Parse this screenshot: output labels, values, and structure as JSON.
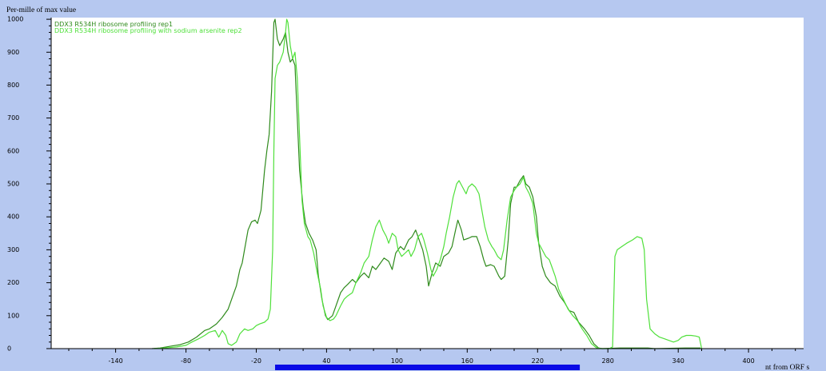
{
  "page": {
    "background": "#b6c8f0"
  },
  "chart_data": {
    "type": "line",
    "ylabel": "Per-mille of max value",
    "xlabel": "nt from ORF s",
    "xlim": [
      -195,
      447
    ],
    "ylim": [
      0,
      1005
    ],
    "x_ticks": [
      -140,
      -80,
      -20,
      40,
      100,
      160,
      220,
      280,
      340,
      400
    ],
    "y_ticks": [
      0,
      100,
      200,
      300,
      400,
      500,
      600,
      700,
      800,
      900,
      1000
    ],
    "grid": false,
    "legend": "top-left",
    "plot_background": "#ffffff",
    "orf": {
      "start": -4,
      "end": 256,
      "color": "#0a0ae6"
    },
    "series": [
      {
        "name": "DDX3 R534H ribosome profiling rep1",
        "color": "#2f8a1c",
        "x": [
          -109,
          -102,
          -92,
          -85,
          -78,
          -71,
          -64,
          -60,
          -54,
          -49,
          -44,
          -41,
          -37,
          -34,
          -32,
          -30,
          -27,
          -24,
          -21,
          -19,
          -16,
          -13,
          -11,
          -9,
          -7,
          -5,
          -4,
          -2,
          0,
          3,
          5,
          7,
          9,
          11,
          13,
          15,
          17,
          20,
          22,
          25,
          28,
          31,
          33,
          36,
          39,
          41,
          45,
          48,
          52,
          55,
          58,
          62,
          65,
          69,
          72,
          76,
          79,
          82,
          86,
          89,
          93,
          96,
          99,
          103,
          106,
          110,
          113,
          116,
          119,
          122,
          125,
          127,
          130,
          133,
          137,
          140,
          144,
          147,
          150,
          152,
          155,
          157,
          161,
          164,
          168,
          171,
          174,
          176,
          180,
          183,
          187,
          189,
          192,
          195,
          197,
          200,
          202,
          205,
          208,
          210,
          213,
          216,
          219,
          221,
          224,
          227,
          231,
          235,
          239,
          243,
          247,
          251,
          255,
          260,
          264,
          268,
          272,
          275,
          290,
          314,
          320,
          346,
          359
        ],
        "y": [
          0,
          2,
          8,
          12,
          20,
          35,
          55,
          60,
          75,
          95,
          120,
          150,
          190,
          240,
          260,
          300,
          360,
          385,
          390,
          380,
          420,
          540,
          600,
          650,
          780,
          990,
          1000,
          940,
          920,
          940,
          960,
          900,
          870,
          880,
          860,
          700,
          540,
          430,
          380,
          350,
          330,
          300,
          220,
          150,
          100,
          88,
          100,
          130,
          170,
          185,
          195,
          210,
          200,
          220,
          230,
          215,
          250,
          240,
          260,
          275,
          265,
          240,
          290,
          310,
          300,
          330,
          340,
          360,
          330,
          300,
          250,
          190,
          230,
          260,
          250,
          280,
          290,
          310,
          360,
          390,
          360,
          330,
          335,
          340,
          340,
          310,
          270,
          250,
          255,
          250,
          220,
          210,
          220,
          330,
          440,
          490,
          490,
          510,
          525,
          500,
          490,
          460,
          400,
          320,
          250,
          220,
          200,
          190,
          160,
          140,
          115,
          110,
          80,
          60,
          40,
          15,
          2,
          0,
          2,
          2,
          0,
          2,
          2
        ]
      },
      {
        "name": "DDX3 R534H ribosome profiling with sodium arsenite rep2",
        "color": "#4fe03a",
        "x": [
          -107,
          -98,
          -88,
          -80,
          -75,
          -69,
          -64,
          -60,
          -55,
          -52,
          -49,
          -46,
          -44,
          -41,
          -37,
          -34,
          -30,
          -27,
          -23,
          -20,
          -17,
          -13,
          -10,
          -8,
          -6,
          -5,
          -4,
          -2,
          0,
          3,
          5,
          6,
          7,
          9,
          11,
          13,
          15,
          17,
          19,
          21,
          24,
          26,
          29,
          32,
          35,
          37,
          40,
          43,
          46,
          48,
          52,
          55,
          58,
          62,
          65,
          69,
          72,
          76,
          79,
          82,
          85,
          88,
          91,
          93,
          96,
          99,
          101,
          104,
          107,
          110,
          112,
          115,
          118,
          121,
          123,
          126,
          129,
          131,
          134,
          137,
          140,
          142,
          145,
          148,
          151,
          153,
          156,
          159,
          161,
          164,
          167,
          170,
          172,
          175,
          178,
          181,
          183,
          186,
          189,
          191,
          194,
          197,
          200,
          202,
          205,
          208,
          210,
          213,
          216,
          219,
          221,
          224,
          227,
          230,
          232,
          235,
          238,
          242,
          246,
          250,
          254,
          258,
          262,
          266,
          270,
          275,
          281,
          284,
          286,
          288,
          292,
          296,
          301,
          305,
          309,
          311,
          313,
          316,
          320,
          324,
          328,
          332,
          336,
          340,
          343,
          347,
          351,
          355,
          358,
          360
        ],
        "y": [
          0,
          2,
          5,
          10,
          20,
          30,
          40,
          50,
          55,
          35,
          55,
          40,
          15,
          10,
          20,
          45,
          60,
          55,
          60,
          70,
          75,
          80,
          90,
          120,
          300,
          600,
          820,
          860,
          870,
          900,
          960,
          1000,
          990,
          920,
          880,
          900,
          820,
          640,
          450,
          380,
          340,
          330,
          290,
          230,
          180,
          130,
          95,
          85,
          90,
          100,
          130,
          150,
          160,
          170,
          200,
          230,
          260,
          280,
          330,
          370,
          390,
          360,
          340,
          320,
          350,
          340,
          300,
          280,
          290,
          300,
          280,
          300,
          340,
          350,
          330,
          290,
          240,
          220,
          240,
          270,
          310,
          350,
          400,
          460,
          500,
          510,
          490,
          470,
          490,
          500,
          490,
          470,
          430,
          370,
          330,
          310,
          300,
          280,
          270,
          300,
          390,
          460,
          480,
          490,
          500,
          520,
          490,
          470,
          440,
          350,
          320,
          300,
          280,
          270,
          250,
          220,
          180,
          150,
          120,
          100,
          85,
          60,
          40,
          15,
          3,
          0,
          0,
          5,
          280,
          300,
          310,
          320,
          330,
          340,
          335,
          300,
          150,
          60,
          45,
          35,
          30,
          25,
          20,
          25,
          35,
          40,
          40,
          38,
          35,
          0
        ]
      }
    ]
  }
}
